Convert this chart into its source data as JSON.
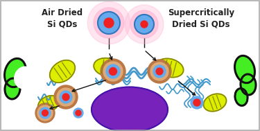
{
  "bg_color": "#ffffff",
  "cell_color": "#44ee22",
  "cell_outline": "#111111",
  "nucleus_color": "#7722bb",
  "er_color": "#4499cc",
  "mito_color": "#ddee00",
  "mito_outline": "#888800",
  "qd_glow": "#ffaacc",
  "qd_blue": "#66aaee",
  "qd_blue_dark": "#3377bb",
  "qd_red": "#ee2222",
  "endo_outer": "#bb7744",
  "endo_mid": "#ddaa77",
  "arrow_color": "#111111",
  "text_color": "#222222",
  "label_left": "Air Dried\nSi QDs",
  "label_right": "Supercritically\nDried Si QDs",
  "fontsize": 8.5,
  "figsize": [
    3.75,
    1.89
  ],
  "dpi": 100
}
